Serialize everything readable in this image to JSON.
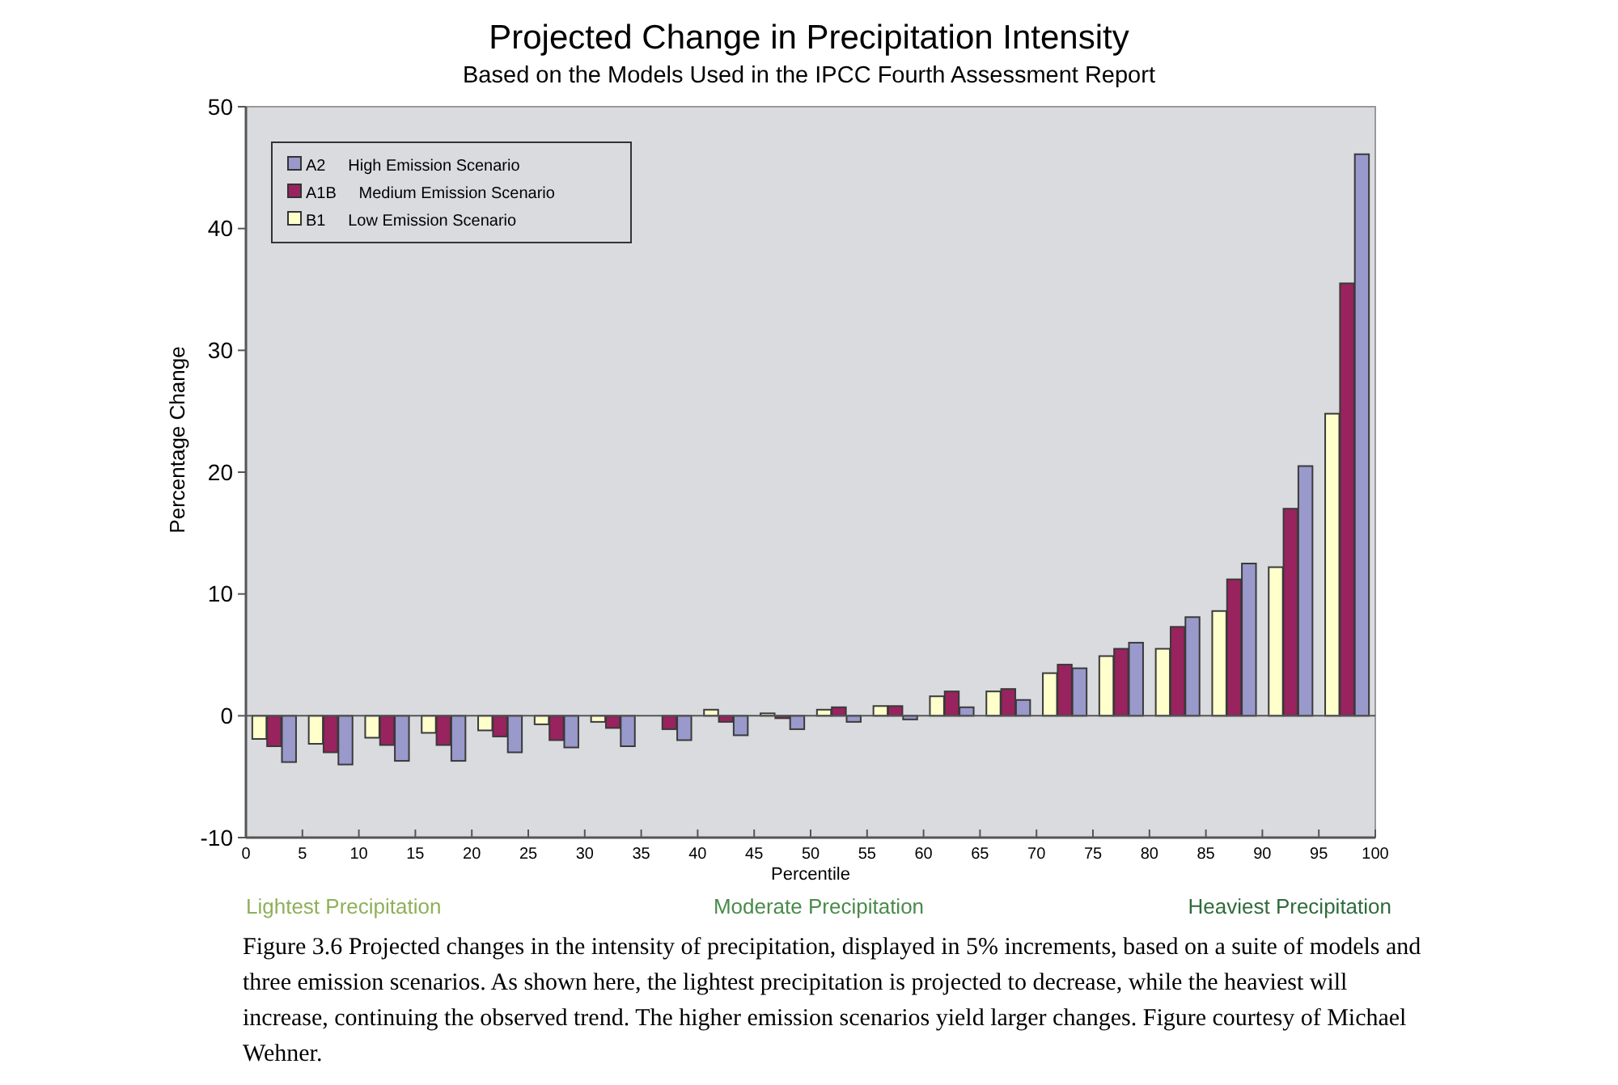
{
  "chart_data": {
    "type": "bar",
    "title": "Projected Change in Precipitation Intensity",
    "subtitle": "Based on the Models Used in the IPCC Fourth Assessment Report",
    "xlabel": "Percentile",
    "ylabel": "Percentage Change",
    "x": [
      2.5,
      7.5,
      12.5,
      17.5,
      22.5,
      27.5,
      32.5,
      37.5,
      42.5,
      47.5,
      52.5,
      57.5,
      62.5,
      67.5,
      72.5,
      77.5,
      82.5,
      87.5,
      92.5,
      97.5
    ],
    "series": [
      {
        "name": "B1 Low Emission Scenario",
        "color": "#ffffcc",
        "values": [
          -1.9,
          -2.3,
          -1.8,
          -1.4,
          -1.2,
          -0.7,
          -0.5,
          null,
          0.5,
          0.2,
          0.5,
          0.8,
          1.6,
          2.0,
          3.5,
          4.9,
          5.5,
          8.6,
          12.2,
          24.8
        ]
      },
      {
        "name": "A1B Medium Emission Scenario",
        "color": "#99235e",
        "values": [
          -2.5,
          -3.0,
          -2.4,
          -2.4,
          -1.7,
          -2.0,
          -1.0,
          -1.1,
          -0.5,
          -0.2,
          0.7,
          0.8,
          2.0,
          2.2,
          4.2,
          5.5,
          7.3,
          11.2,
          17.0,
          35.5
        ]
      },
      {
        "name": "A2 High Emission Scenario",
        "color": "#9999cc",
        "values": [
          -3.8,
          -4.0,
          -3.7,
          -3.7,
          -3.0,
          -2.6,
          -2.5,
          -2.0,
          -1.6,
          -1.1,
          -0.5,
          -0.3,
          0.7,
          1.3,
          3.9,
          6.0,
          8.1,
          12.5,
          20.5,
          46.1
        ]
      }
    ],
    "xlim": [
      0,
      100
    ],
    "xticks": [
      0,
      5,
      10,
      15,
      20,
      25,
      30,
      35,
      40,
      45,
      50,
      55,
      60,
      65,
      70,
      75,
      80,
      85,
      90,
      95,
      100
    ],
    "ylim": [
      -10,
      50
    ],
    "yticks": [
      -10,
      0,
      10,
      20,
      30,
      40,
      50
    ],
    "legend": "top left",
    "annotations": [
      "Lightest Precipitation",
      "Moderate Precipitation",
      "Heaviest Precipitation",
      "Figure 3.6 Projected changes in the intensity of precipitation, displayed in 5% increments, based on a suite of models and three emission scenarios. As shown here, the lightest precipitation is projected to decrease, while the heaviest will increase, continuing the observed trend. The higher emission scenarios yield larger changes. Figure courtesy of Michael Wehner."
    ]
  }
}
